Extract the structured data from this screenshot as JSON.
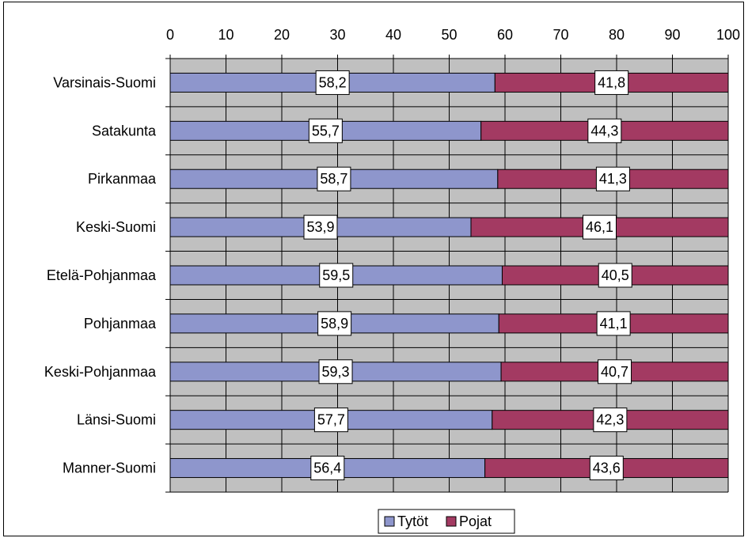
{
  "chart_data": {
    "type": "bar",
    "orientation": "horizontal",
    "stacked": true,
    "categories": [
      "Varsinais-Suomi",
      "Satakunta",
      "Pirkanmaa",
      "Keski-Suomi",
      "Etelä-Pohjanmaa",
      "Pohjanmaa",
      "Keski-Pohjanmaa",
      "Länsi-Suomi",
      "Manner-Suomi"
    ],
    "series": [
      {
        "name": "Tytöt",
        "values": [
          58.2,
          55.7,
          58.7,
          53.9,
          59.5,
          58.9,
          59.3,
          57.7,
          56.4
        ],
        "labels": [
          "58,2",
          "55,7",
          "58,7",
          "53,9",
          "59,5",
          "58,9",
          "59,3",
          "57,7",
          "56,4"
        ],
        "color": "#8e96cc"
      },
      {
        "name": "Pojat",
        "values": [
          41.8,
          44.3,
          41.3,
          46.1,
          40.5,
          41.1,
          40.7,
          42.3,
          43.6
        ],
        "labels": [
          "41,8",
          "44,3",
          "41,3",
          "46,1",
          "40,5",
          "41,1",
          "40,7",
          "42,3",
          "43,6"
        ],
        "color": "#a33a62"
      }
    ],
    "xlim": [
      0,
      100
    ],
    "xticks": [
      "0",
      "10",
      "20",
      "30",
      "40",
      "50",
      "60",
      "70",
      "80",
      "90",
      "100"
    ],
    "title": "",
    "xlabel": "",
    "ylabel": "",
    "grid": true,
    "plot_background": "#c0c0c0",
    "legend_position": "bottom"
  }
}
